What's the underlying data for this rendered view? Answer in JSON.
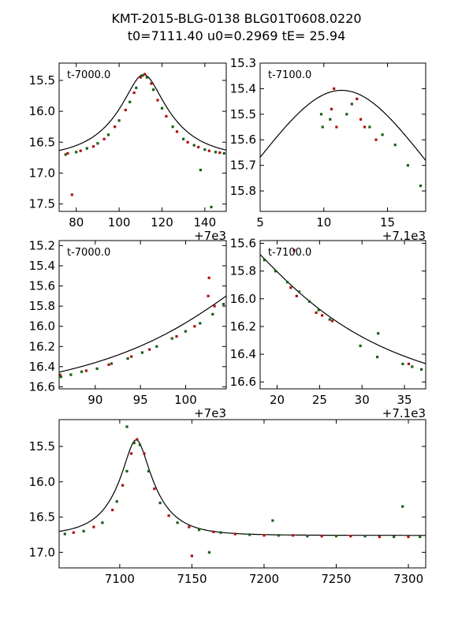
{
  "title_line1": "KMT-2015-BLG-0138 BLG01T0608.0220",
  "title_line2": "t0=7111.40 u0=0.2969 tE=  25.94",
  "colors": {
    "series_a": "#1a5e1a",
    "series_b": "#b01010",
    "model": "#000000"
  },
  "model": {
    "t0": 7111.4,
    "u0": 0.2969,
    "tE": 25.94,
    "base_mag": 16.76,
    "unit": "mag"
  },
  "chart_data": [
    {
      "type": "scatter",
      "name": "panel-1",
      "label": "t-7000.0",
      "offset": 7000,
      "xlim": [
        72,
        150
      ],
      "ylim": [
        17.62,
        15.22
      ],
      "xticks": [
        80,
        100,
        120,
        140
      ],
      "xtick_labels": [
        "80",
        "100",
        "120",
        "140"
      ],
      "yticks": [
        15.5,
        16.0,
        16.5,
        17.0,
        17.5
      ],
      "ytick_labels": [
        "15.5",
        "16.0",
        "16.5",
        "17.0",
        "17.5"
      ],
      "offset_label": "+7e3",
      "series": [
        {
          "name": "green",
          "values": [
            [
              75,
              16.7
            ],
            [
              80,
              16.66
            ],
            [
              85,
              16.6
            ],
            [
              90,
              16.52
            ],
            [
              95,
              16.38
            ],
            [
              100,
              16.15
            ],
            [
              105,
              15.85
            ],
            [
              108,
              15.62
            ],
            [
              111,
              15.42
            ],
            [
              113,
              15.45
            ],
            [
              116,
              15.65
            ],
            [
              120,
              15.95
            ],
            [
              125,
              16.25
            ],
            [
              130,
              16.45
            ],
            [
              135,
              16.55
            ],
            [
              140,
              16.62
            ],
            [
              145,
              16.66
            ],
            [
              149,
              16.68
            ],
            [
              138,
              16.95
            ],
            [
              143,
              17.55
            ]
          ]
        },
        {
          "name": "red",
          "values": [
            [
              76,
              16.68
            ],
            [
              82,
              16.64
            ],
            [
              88,
              16.57
            ],
            [
              93,
              16.45
            ],
            [
              98,
              16.25
            ],
            [
              103,
              15.98
            ],
            [
              107,
              15.7
            ],
            [
              110,
              15.45
            ],
            [
              112,
              15.4
            ],
            [
              115,
              15.55
            ],
            [
              118,
              15.82
            ],
            [
              122,
              16.08
            ],
            [
              127,
              16.33
            ],
            [
              132,
              16.5
            ],
            [
              137,
              16.58
            ],
            [
              142,
              16.64
            ],
            [
              147,
              16.67
            ],
            [
              78,
              17.35
            ]
          ]
        }
      ]
    },
    {
      "type": "scatter",
      "name": "panel-2",
      "label": "t-7100.0",
      "offset": 7100,
      "xlim": [
        5,
        18
      ],
      "ylim": [
        15.88,
        15.3
      ],
      "xticks": [
        5,
        10,
        15
      ],
      "xtick_labels": [
        "5",
        "10",
        "15"
      ],
      "yticks": [
        15.3,
        15.4,
        15.5,
        15.6,
        15.7,
        15.8
      ],
      "ytick_labels": [
        "15.3",
        "15.4",
        "15.5",
        "15.6",
        "15.7",
        "15.8"
      ],
      "offset_label": "+7.1e3",
      "series": [
        {
          "name": "green",
          "values": [
            [
              9.8,
              15.5
            ],
            [
              9.9,
              15.55
            ],
            [
              10.5,
              15.52
            ],
            [
              11.8,
              15.5
            ],
            [
              12.2,
              15.46
            ],
            [
              13.6,
              15.55
            ],
            [
              14.6,
              15.58
            ],
            [
              15.6,
              15.62
            ],
            [
              16.6,
              15.7
            ],
            [
              17.6,
              15.78
            ]
          ]
        },
        {
          "name": "red",
          "values": [
            [
              10.6,
              15.48
            ],
            [
              10.8,
              15.4
            ],
            [
              12.6,
              15.44
            ],
            [
              12.9,
              15.52
            ],
            [
              13.2,
              15.55
            ],
            [
              14.1,
              15.6
            ],
            [
              11.0,
              15.55
            ]
          ]
        }
      ]
    },
    {
      "type": "scatter",
      "name": "panel-3",
      "label": "t-7000.0",
      "offset": 7000,
      "xlim": [
        86,
        104.5
      ],
      "ylim": [
        16.62,
        15.15
      ],
      "xticks": [
        90,
        95,
        100
      ],
      "xtick_labels": [
        "90",
        "95",
        "100"
      ],
      "yticks": [
        15.2,
        15.4,
        15.6,
        15.8,
        16.0,
        16.2,
        16.4,
        16.6
      ],
      "ytick_labels": [
        "15.2",
        "15.4",
        "15.6",
        "15.8",
        "16.0",
        "16.2",
        "16.4",
        "16.6"
      ],
      "offset_label": "+7e3",
      "series": [
        {
          "name": "green",
          "values": [
            [
              86.2,
              16.5
            ],
            [
              87.3,
              16.48
            ],
            [
              88.5,
              16.45
            ],
            [
              90.2,
              16.42
            ],
            [
              91.8,
              16.37
            ],
            [
              93.6,
              16.32
            ],
            [
              95.2,
              16.26
            ],
            [
              96.8,
              16.2
            ],
            [
              98.5,
              16.12
            ],
            [
              100.0,
              16.05
            ],
            [
              101.6,
              15.97
            ],
            [
              103.0,
              15.88
            ],
            [
              104.2,
              15.78
            ]
          ]
        },
        {
          "name": "red",
          "values": [
            [
              86.1,
              16.48
            ],
            [
              89.0,
              16.44
            ],
            [
              91.5,
              16.38
            ],
            [
              94.0,
              16.3
            ],
            [
              96.0,
              16.23
            ],
            [
              99.0,
              16.1
            ],
            [
              101.0,
              16.0
            ],
            [
              102.5,
              15.7
            ],
            [
              103.2,
              15.8
            ],
            [
              102.6,
              15.52
            ]
          ]
        }
      ]
    },
    {
      "type": "scatter",
      "name": "panel-4",
      "label": "t-7100.0",
      "offset": 7100,
      "xlim": [
        18,
        37.5
      ],
      "ylim": [
        16.65,
        15.58
      ],
      "xticks": [
        20,
        25,
        30,
        35
      ],
      "xtick_labels": [
        "20",
        "25",
        "30",
        "35"
      ],
      "yticks": [
        15.6,
        15.8,
        16.0,
        16.2,
        16.4,
        16.6
      ],
      "ytick_labels": [
        "15.6",
        "15.8",
        "16.0",
        "16.2",
        "16.4",
        "16.6"
      ],
      "offset_label": "+7.1e3",
      "series": [
        {
          "name": "green",
          "values": [
            [
              18.5,
              15.72
            ],
            [
              19.8,
              15.8
            ],
            [
              21.2,
              15.88
            ],
            [
              22.6,
              15.95
            ],
            [
              23.8,
              16.02
            ],
            [
              24.9,
              16.08
            ],
            [
              26.2,
              16.15
            ],
            [
              29.8,
              16.34
            ],
            [
              31.8,
              16.42
            ],
            [
              31.9,
              16.25
            ],
            [
              34.8,
              16.47
            ],
            [
              35.9,
              16.49
            ],
            [
              37.0,
              16.51
            ]
          ]
        },
        {
          "name": "red",
          "values": [
            [
              21.6,
              15.92
            ],
            [
              22.3,
              15.98
            ],
            [
              24.6,
              16.1
            ],
            [
              25.3,
              16.12
            ],
            [
              26.5,
              16.16
            ],
            [
              22.0,
              15.65
            ],
            [
              35.5,
              16.47
            ]
          ]
        }
      ]
    },
    {
      "type": "scatter",
      "name": "panel-5",
      "label": "",
      "offset": 0,
      "xlim": [
        7058,
        7312
      ],
      "ylim": [
        17.22,
        15.12
      ],
      "xticks": [
        7100,
        7150,
        7200,
        7250,
        7300
      ],
      "xtick_labels": [
        "7100",
        "7150",
        "7200",
        "7250",
        "7300"
      ],
      "yticks": [
        15.5,
        16.0,
        16.5,
        17.0
      ],
      "ytick_labels": [
        "15.5",
        "16.0",
        "16.5",
        "17.0"
      ],
      "offset_label": "",
      "series": [
        {
          "name": "green",
          "values": [
            [
              7062,
              16.74
            ],
            [
              7075,
              16.7
            ],
            [
              7088,
              16.58
            ],
            [
              7098,
              16.28
            ],
            [
              7105,
              15.85
            ],
            [
              7110,
              15.45
            ],
            [
              7114,
              15.48
            ],
            [
              7120,
              15.85
            ],
            [
              7128,
              16.3
            ],
            [
              7140,
              16.58
            ],
            [
              7155,
              16.68
            ],
            [
              7170,
              16.72
            ],
            [
              7190,
              16.75
            ],
            [
              7210,
              16.76
            ],
            [
              7230,
              16.77
            ],
            [
              7250,
              16.77
            ],
            [
              7270,
              16.77
            ],
            [
              7290,
              16.78
            ],
            [
              7308,
              16.78
            ],
            [
              7162,
              17.0
            ],
            [
              7206,
              16.55
            ],
            [
              7296,
              16.35
            ],
            [
              7105,
              15.22
            ]
          ]
        },
        {
          "name": "red",
          "values": [
            [
              7068,
              16.72
            ],
            [
              7082,
              16.64
            ],
            [
              7095,
              16.4
            ],
            [
              7102,
              16.05
            ],
            [
              7108,
              15.6
            ],
            [
              7112,
              15.4
            ],
            [
              7117,
              15.6
            ],
            [
              7124,
              16.1
            ],
            [
              7134,
              16.48
            ],
            [
              7148,
              16.64
            ],
            [
              7165,
              16.71
            ],
            [
              7180,
              16.74
            ],
            [
              7200,
              16.76
            ],
            [
              7220,
              16.76
            ],
            [
              7240,
              16.77
            ],
            [
              7260,
              16.77
            ],
            [
              7280,
              16.78
            ],
            [
              7300,
              16.78
            ],
            [
              7150,
              17.05
            ]
          ]
        }
      ]
    }
  ]
}
